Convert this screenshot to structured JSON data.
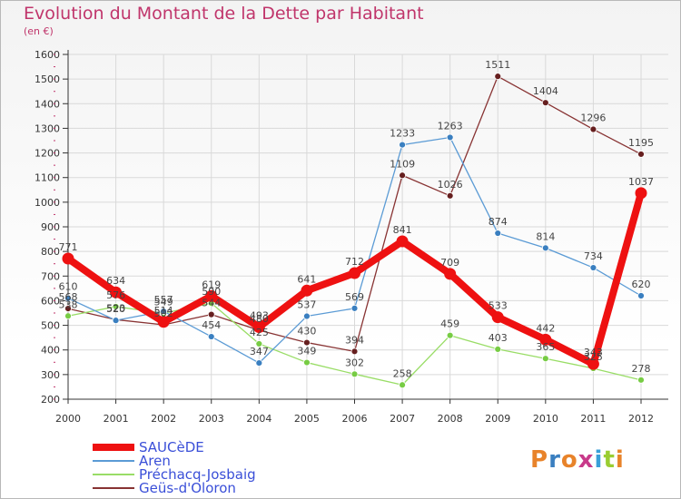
{
  "title": "Evolution du Montant de la Dette par Habitant",
  "subtitle": "(en €)",
  "logo": "Proxiti",
  "colors": {
    "title": "#c0356b",
    "grid": "#d9d9d9",
    "axis": "#333333",
    "legend_text": "#3a4fd8"
  },
  "chart_data": {
    "type": "line",
    "x": [
      "2000",
      "2001",
      "2002",
      "2003",
      "2004",
      "2005",
      "2006",
      "2007",
      "2008",
      "2009",
      "2010",
      "2011",
      "2012"
    ],
    "ylim": [
      200,
      1600
    ],
    "yticks": [
      200,
      300,
      400,
      500,
      600,
      700,
      800,
      900,
      1000,
      1100,
      1200,
      1300,
      1400,
      1500,
      1600
    ],
    "grid": true,
    "legend_position": "bottom-left",
    "series": [
      {
        "name": "SAUCèDE",
        "color": "#ee1111",
        "marker": "#ee1111",
        "values": [
          771,
          634,
          514,
          619,
          493,
          641,
          712,
          841,
          709,
          533,
          442,
          343,
          1037
        ]
      },
      {
        "name": "Aren",
        "color": "#5b9bd5",
        "marker": "#3a7fc0",
        "values": [
          610,
          520,
          557,
          454,
          347,
          537,
          569,
          1233,
          1263,
          874,
          814,
          734,
          620
        ]
      },
      {
        "name": "Préchacq-Josbaig",
        "color": "#99dd66",
        "marker": "#77cc44",
        "values": [
          538,
          576,
          549,
          590,
          425,
          349,
          302,
          258,
          459,
          403,
          365,
          325,
          278
        ]
      },
      {
        "name": "Geüs-d'Oloron",
        "color": "#883333",
        "marker": "#661f1f",
        "values": [
          568,
          523,
          502,
          544,
          480,
          430,
          394,
          1109,
          1026,
          1511,
          1404,
          1296,
          1195
        ]
      }
    ],
    "point_labels": {
      "SAUCèDE": [
        "771",
        "634",
        "514",
        "619",
        "493",
        "641",
        "712",
        "841",
        "709",
        "533",
        "442",
        "343",
        "1037"
      ],
      "Aren": [
        "610",
        "520",
        "557",
        "454",
        "347",
        "537",
        "569",
        "1233",
        "1263",
        "874",
        "814",
        "734",
        "620"
      ],
      "Préchacq-Josbaig": [
        "538",
        "576",
        "549",
        "590",
        "425",
        "349",
        "302",
        "258",
        "459",
        "403",
        "365",
        "325",
        "278"
      ],
      "Geüs-d'Oloron": [
        "568",
        "523",
        "502",
        "544",
        "480",
        "430",
        "394",
        "1109",
        "1026",
        "1511",
        "1404",
        "1296",
        "1195"
      ]
    }
  }
}
